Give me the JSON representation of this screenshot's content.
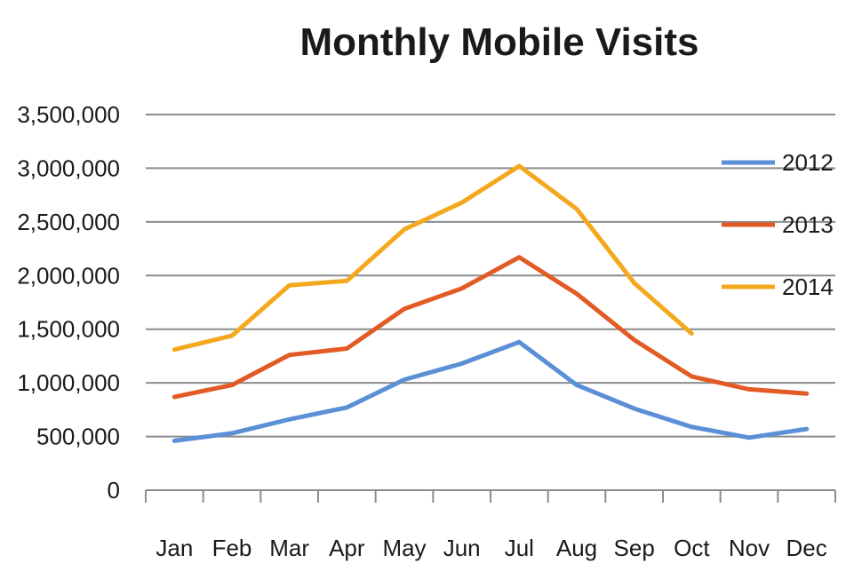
{
  "chart_data": {
    "type": "line",
    "title": "Monthly Mobile Visits",
    "xlabel": "",
    "ylabel": "",
    "categories": [
      "Jan",
      "Feb",
      "Mar",
      "Apr",
      "May",
      "Jun",
      "Jul",
      "Aug",
      "Sep",
      "Oct",
      "Nov",
      "Dec"
    ],
    "ylim": [
      0,
      3500000
    ],
    "yticks": [
      0,
      500000,
      1000000,
      1500000,
      2000000,
      2500000,
      3000000,
      3500000
    ],
    "ytick_labels": [
      "0",
      "500,000",
      "1,000,000",
      "1,500,000",
      "2,000,000",
      "2,500,000",
      "3,000,000",
      "3,500,000"
    ],
    "grid": true,
    "legend": "right",
    "series": [
      {
        "name": "2012",
        "color": "#5b8fd6",
        "values": [
          460000,
          530000,
          660000,
          770000,
          1030000,
          1180000,
          1380000,
          980000,
          760000,
          590000,
          490000,
          570000
        ]
      },
      {
        "name": "2013",
        "color": "#e25a24",
        "values": [
          870000,
          980000,
          1260000,
          1320000,
          1690000,
          1880000,
          2170000,
          1830000,
          1400000,
          1060000,
          940000,
          900000
        ]
      },
      {
        "name": "2014",
        "color": "#f4a81d",
        "values": [
          1310000,
          1440000,
          1910000,
          1950000,
          2430000,
          2680000,
          3020000,
          2620000,
          1930000,
          1460000,
          null,
          null
        ]
      }
    ]
  }
}
